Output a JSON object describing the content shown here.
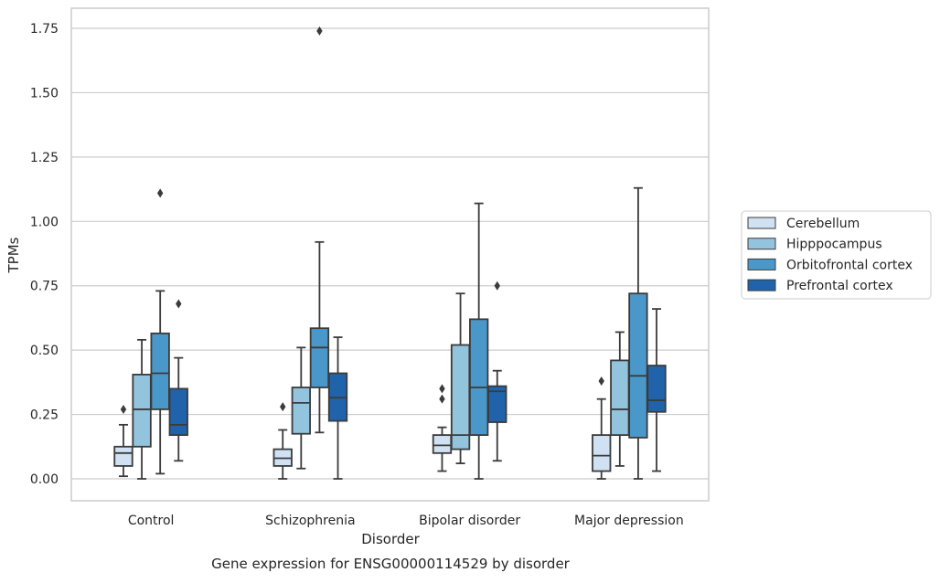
{
  "chart_data": {
    "type": "box",
    "title": "Gene expression for ENSG00000114529 by disorder",
    "xlabel": "Disorder",
    "ylabel": "TPMs",
    "ylim": [
      -0.08,
      1.83
    ],
    "yticks": [
      0.0,
      0.25,
      0.5,
      0.75,
      1.0,
      1.25,
      1.5,
      1.75
    ],
    "ytick_labels": [
      "0.00",
      "0.25",
      "0.50",
      "0.75",
      "1.00",
      "1.25",
      "1.50",
      "1.75"
    ],
    "grid": true,
    "legend_position": "outside-right",
    "categories": [
      "Control",
      "Schizophrenia",
      "Bipolar disorder",
      "Major depression"
    ],
    "series": [
      {
        "name": "Cerebellum",
        "color": "#cfe1f2",
        "boxes": [
          {
            "whislo": 0.01,
            "q1": 0.05,
            "med": 0.1,
            "q3": 0.125,
            "whishi": 0.21,
            "fliers": [
              0.27
            ]
          },
          {
            "whislo": 0.0,
            "q1": 0.05,
            "med": 0.08,
            "q3": 0.115,
            "whishi": 0.19,
            "fliers": [
              0.28
            ]
          },
          {
            "whislo": 0.03,
            "q1": 0.1,
            "med": 0.13,
            "q3": 0.17,
            "whishi": 0.2,
            "fliers": [
              0.31,
              0.35
            ]
          },
          {
            "whislo": 0.0,
            "q1": 0.03,
            "med": 0.09,
            "q3": 0.17,
            "whishi": 0.31,
            "fliers": [
              0.38
            ]
          }
        ]
      },
      {
        "name": "Hipppocampus",
        "color": "#93c4de",
        "boxes": [
          {
            "whislo": 0.0,
            "q1": 0.125,
            "med": 0.27,
            "q3": 0.405,
            "whishi": 0.54,
            "fliers": []
          },
          {
            "whislo": 0.04,
            "q1": 0.175,
            "med": 0.295,
            "q3": 0.355,
            "whishi": 0.51,
            "fliers": []
          },
          {
            "whislo": 0.06,
            "q1": 0.115,
            "med": 0.17,
            "q3": 0.52,
            "whishi": 0.72,
            "fliers": []
          },
          {
            "whislo": 0.05,
            "q1": 0.17,
            "med": 0.27,
            "q3": 0.46,
            "whishi": 0.57,
            "fliers": []
          }
        ]
      },
      {
        "name": "Orbitofrontal cortex",
        "color": "#4a98c9",
        "boxes": [
          {
            "whislo": 0.02,
            "q1": 0.27,
            "med": 0.41,
            "q3": 0.565,
            "whishi": 0.73,
            "fliers": [
              1.11
            ]
          },
          {
            "whislo": 0.18,
            "q1": 0.355,
            "med": 0.51,
            "q3": 0.585,
            "whishi": 0.92,
            "fliers": [
              1.74
            ]
          },
          {
            "whislo": 0.0,
            "q1": 0.17,
            "med": 0.355,
            "q3": 0.62,
            "whishi": 1.07,
            "fliers": []
          },
          {
            "whislo": 0.0,
            "q1": 0.16,
            "med": 0.4,
            "q3": 0.72,
            "whishi": 1.13,
            "fliers": []
          }
        ]
      },
      {
        "name": "Prefrontal cortex",
        "color": "#2163aa",
        "boxes": [
          {
            "whislo": 0.07,
            "q1": 0.17,
            "med": 0.21,
            "q3": 0.35,
            "whishi": 0.47,
            "fliers": [
              0.68
            ]
          },
          {
            "whislo": 0.0,
            "q1": 0.225,
            "med": 0.315,
            "q3": 0.41,
            "whishi": 0.55,
            "fliers": []
          },
          {
            "whislo": 0.07,
            "q1": 0.22,
            "med": 0.34,
            "q3": 0.36,
            "whishi": 0.42,
            "fliers": [
              0.75
            ]
          },
          {
            "whislo": 0.03,
            "q1": 0.26,
            "med": 0.305,
            "q3": 0.44,
            "whishi": 0.66,
            "fliers": []
          }
        ]
      }
    ]
  }
}
